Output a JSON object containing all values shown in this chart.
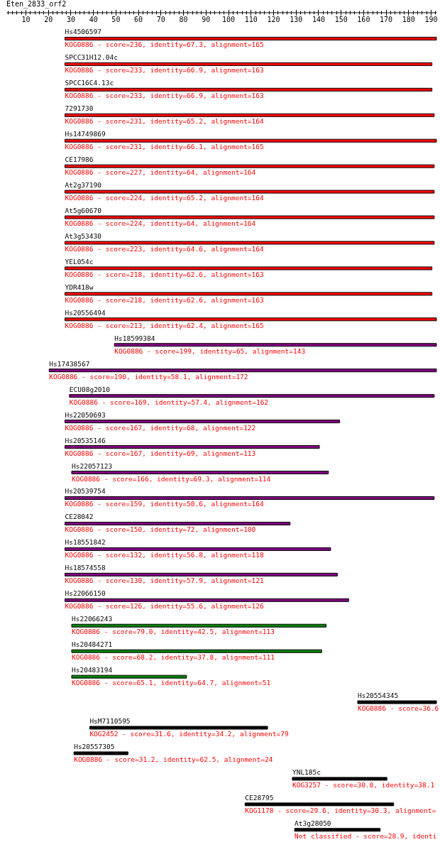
{
  "chart_data": {
    "type": "bar",
    "orientation": "horizontal",
    "title": "Eten_2833_orf2",
    "categories": [
      "Hs4506597",
      "SPCC31H12.04c",
      "SPCC16C4.13c",
      "7291730",
      "Hs14749869",
      "CE17986",
      "At2g37190",
      "At5g60670",
      "At3g53430",
      "YEL054c",
      "YDR418w",
      "Hs20556494",
      "Hs18599384",
      "Hs17438567",
      "ECU08g2010",
      "Hs22050693",
      "Hs20535146",
      "Hs22057123",
      "Hs20539754",
      "CE28042",
      "Hs18551842",
      "Hs18574558",
      "Hs22066150",
      "Hs22066243",
      "Hs20484271",
      "Hs20483194",
      "Hs20554345",
      "HsM7110595",
      "Hs20557305",
      "YNL185c",
      "CE28795",
      "At3g28050"
    ],
    "base": [
      27.5,
      27.5,
      27.5,
      27.5,
      27.5,
      27.5,
      27.5,
      27.5,
      27.5,
      27.5,
      27.5,
      27.5,
      49.5,
      20.5,
      29.5,
      27.5,
      27.5,
      30.5,
      27.5,
      27.5,
      27.5,
      27.5,
      27.5,
      30.5,
      30.5,
      30.5,
      157.5,
      38.5,
      31.5,
      128.5,
      107.5,
      129.5
    ],
    "values": [
      165,
      163,
      163,
      164,
      165,
      164,
      164,
      164,
      164,
      163,
      163,
      165,
      143,
      172,
      162,
      122,
      113,
      114,
      164,
      100,
      118,
      121,
      126,
      113,
      111,
      51,
      35,
      79,
      24,
      42,
      66,
      38
    ],
    "colors": [
      "#ff0000",
      "#ff0000",
      "#ff0000",
      "#ff0000",
      "#ff0000",
      "#ff0000",
      "#ff0000",
      "#ff0000",
      "#ff0000",
      "#ff0000",
      "#ff0000",
      "#ff0000",
      "#800080",
      "#800080",
      "#800080",
      "#800080",
      "#800080",
      "#800080",
      "#800080",
      "#800080",
      "#800080",
      "#800080",
      "#800080",
      "#008000",
      "#008000",
      "#008000",
      "#000000",
      "#000000",
      "#000000",
      "#000000",
      "#000000",
      "#000000"
    ],
    "xlim": [
      1.5,
      192.5
    ],
    "xticks": [
      {
        "value": 2,
        "label": null
      },
      {
        "value": 4,
        "label": null
      },
      {
        "value": 6,
        "label": null
      },
      {
        "value": 8,
        "label": null
      },
      10,
      {
        "value": 12,
        "label": null
      },
      {
        "value": 14,
        "label": null
      },
      {
        "value": 16,
        "label": null
      },
      {
        "value": 18,
        "label": null
      },
      20,
      {
        "value": 22,
        "label": null
      },
      {
        "value": 24,
        "label": null
      },
      {
        "value": 26,
        "label": null
      },
      {
        "value": 28,
        "label": null
      },
      30,
      {
        "value": 32,
        "label": null
      },
      {
        "value": 34,
        "label": null
      },
      {
        "value": 36,
        "label": null
      },
      {
        "value": 38,
        "label": null
      },
      40,
      {
        "value": 42,
        "label": null
      },
      {
        "value": 44,
        "label": null
      },
      {
        "value": 46,
        "label": null
      },
      {
        "value": 48,
        "label": null
      },
      50,
      {
        "value": 52,
        "label": null
      },
      {
        "value": 54,
        "label": null
      },
      {
        "value": 56,
        "label": null
      },
      {
        "value": 58,
        "label": null
      },
      60,
      {
        "value": 62,
        "label": null
      },
      {
        "value": 64,
        "label": null
      },
      {
        "value": 66,
        "label": null
      },
      {
        "value": 68,
        "label": null
      },
      70,
      {
        "value": 72,
        "label": null
      },
      {
        "value": 74,
        "label": null
      },
      {
        "value": 76,
        "label": null
      },
      {
        "value": 78,
        "label": null
      },
      80,
      {
        "value": 82,
        "label": null
      },
      {
        "value": 84,
        "label": null
      },
      {
        "value": 86,
        "label": null
      },
      {
        "value": 88,
        "label": null
      },
      90,
      {
        "value": 92,
        "label": null
      },
      {
        "value": 94,
        "label": null
      },
      {
        "value": 96,
        "label": null
      },
      {
        "value": 98,
        "label": null
      },
      100,
      {
        "value": 102,
        "label": null
      },
      {
        "value": 104,
        "label": null
      },
      {
        "value": 106,
        "label": null
      },
      {
        "value": 108,
        "label": null
      },
      110,
      {
        "value": 112,
        "label": null
      },
      {
        "value": 114,
        "label": null
      },
      {
        "value": 116,
        "label": null
      },
      {
        "value": 118,
        "label": null
      },
      120,
      {
        "value": 122,
        "label": null
      },
      {
        "value": 124,
        "label": null
      },
      {
        "value": 126,
        "label": null
      },
      {
        "value": 128,
        "label": null
      },
      130,
      {
        "value": 132,
        "label": null
      },
      {
        "value": 134,
        "label": null
      },
      {
        "value": 136,
        "label": null
      },
      {
        "value": 138,
        "label": null
      },
      140,
      {
        "value": 142,
        "label": null
      },
      {
        "value": 144,
        "label": null
      },
      {
        "value": 146,
        "label": null
      },
      {
        "value": 148,
        "label": null
      },
      150,
      {
        "value": 152,
        "label": null
      },
      {
        "value": 154,
        "label": null
      },
      {
        "value": 156,
        "label": null
      },
      {
        "value": 158,
        "label": null
      },
      160,
      {
        "value": 162,
        "label": null
      },
      {
        "value": 164,
        "label": null
      },
      {
        "value": 166,
        "label": null
      },
      {
        "value": 168,
        "label": null
      },
      170,
      {
        "value": 172,
        "label": null
      },
      {
        "value": 174,
        "label": null
      },
      {
        "value": 176,
        "label": null
      },
      {
        "value": 178,
        "label": null
      },
      180,
      {
        "value": 182,
        "label": null
      },
      {
        "value": 184,
        "label": null
      },
      {
        "value": 186,
        "label": null
      },
      {
        "value": 188,
        "label": null
      },
      190,
      {
        "value": 192,
        "label": null
      }
    ],
    "annotations": [
      "KOG0886 - score=236, identity=67.3, alignment=165",
      "KOG0886 - score=233, identity=66.9, alignment=163",
      "KOG0886 - score=233, identity=66.9, alignment=163",
      "KOG0886 - score=231, identity=65.2, alignment=164",
      "KOG0886 - score=231, identity=66.1, alignment=165",
      "KOG0886 - score=227, identity=64, alignment=164",
      "KOG0886 - score=224, identity=65.2, alignment=164",
      "KOG0886 - score=224, identity=64, alignment=164",
      "KOG0886 - score=223, identity=64.6, alignment=164",
      "KOG0886 - score=218, identity=62.6, alignment=163",
      "KOG0886 - score=218, identity=62.6, alignment=163",
      "KOG0886 - score=213, identity=62.4, alignment=165",
      "KOG0886 - score=199, identity=65, alignment=143",
      "KOG0886 - score=190, identity=58.1, alignment=172",
      "KOG0886 - score=169, identity=57.4, alignment=162",
      "KOG0886 - score=167, identity=68, alignment=122",
      "KOG0886 - score=167, identity=69, alignment=113",
      "KOG0886 - score=166, identity=69.3, alignment=114",
      "KOG0886 - score=159, identity=50.6, alignment=164",
      "KOG0886 - score=150, identity=72, alignment=100",
      "KOG0886 - score=132, identity=56.8, alignment=118",
      "KOG0886 - score=130, identity=57.9, alignment=121",
      "KOG0886 - score=126, identity=55.6, alignment=126",
      "KOG0886 - score=79.0, identity=42.5, alignment=113",
      "KOG0886 - score=68.2, identity=37.8, alignment=111",
      "KOG0886 - score=65.1, identity=64.7, alignment=51",
      "KOG0886 - score=36.6",
      "KOG2452 - score=31.6, identity=34.2, alignment=79",
      "KOG0886 - score=31.2, identity=62.5, alignment=24",
      "KOG3257 - score=30.0, identity=38.1",
      "KOG1178 - score=29.6, identity=30.3, alignment=",
      "Not classified - score=28.9, identi"
    ]
  }
}
